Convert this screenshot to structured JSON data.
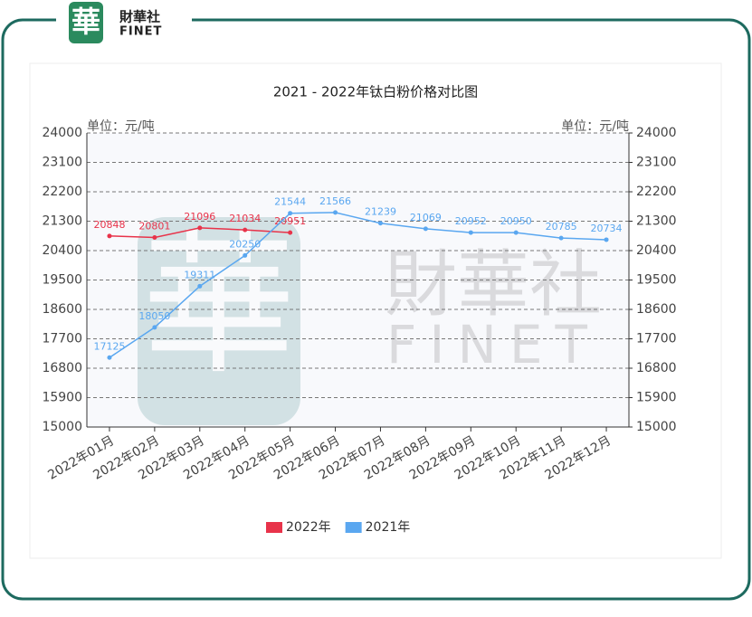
{
  "logo": {
    "mark": "華",
    "name": "財華社",
    "sub": "FINET"
  },
  "chart_data": {
    "type": "line",
    "title": "2021 - 2022年钛白粉价格对比图",
    "ylabel": "单位：元/吨",
    "y2label": "单位：元/吨",
    "categories": [
      "2022年01月",
      "2022年02月",
      "2022年03月",
      "2022年04月",
      "2022年05月",
      "2022年06月",
      "2022年07月",
      "2022年08月",
      "2022年09月",
      "2022年10月",
      "2022年11月",
      "2022年12月"
    ],
    "series": [
      {
        "name": "2022年",
        "color": "#e8334a",
        "values": [
          20848,
          20801,
          21096,
          21034,
          20951,
          null,
          null,
          null,
          null,
          null,
          null,
          null
        ]
      },
      {
        "name": "2021年",
        "color": "#5aa7f0",
        "values": [
          17125,
          18050,
          19311,
          20250,
          21544,
          21566,
          21239,
          21069,
          20952,
          20950,
          20785,
          20734
        ]
      }
    ],
    "ylim": [
      15000,
      24000
    ],
    "yticks": [
      15000,
      15900,
      16800,
      17700,
      18600,
      19500,
      20400,
      21300,
      22200,
      23100,
      24000
    ],
    "y2lim": [
      15000,
      24000
    ],
    "y2ticks": [
      15000,
      15900,
      16800,
      17700,
      18600,
      19500,
      20400,
      21300,
      22200,
      23100,
      24000
    ],
    "grid": true,
    "legend": "bottom"
  }
}
